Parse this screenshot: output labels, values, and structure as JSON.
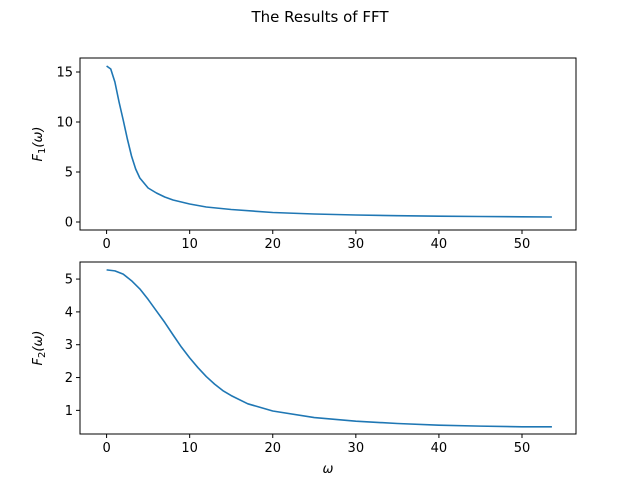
{
  "figure": {
    "title": "The Results of FFT",
    "line_color": "#1f77b4"
  },
  "chart_data": [
    {
      "type": "line",
      "title": "",
      "xlabel": "",
      "ylabel": "F1(ω)",
      "ylabel_main": "F",
      "ylabel_sub": "1",
      "ylabel_rest": "(ω)",
      "xlim": [
        -3.2,
        56.5
      ],
      "ylim": [
        -0.8,
        16.4
      ],
      "xticks": [
        0,
        10,
        20,
        30,
        40,
        50
      ],
      "yticks": [
        0,
        5,
        10,
        15
      ],
      "grid": false,
      "series": [
        {
          "x": [
            0,
            0.5,
            1,
            1.5,
            2,
            2.5,
            3,
            3.5,
            4,
            5,
            6,
            7,
            8,
            10,
            12,
            15,
            20,
            25,
            30,
            35,
            40,
            45,
            50,
            53.6
          ],
          "y": [
            15.6,
            15.3,
            14.0,
            12.0,
            10.2,
            8.3,
            6.6,
            5.3,
            4.4,
            3.4,
            2.9,
            2.5,
            2.2,
            1.8,
            1.5,
            1.25,
            0.95,
            0.8,
            0.7,
            0.63,
            0.58,
            0.55,
            0.52,
            0.5
          ]
        }
      ]
    },
    {
      "type": "line",
      "title": "",
      "xlabel": "ω",
      "ylabel": "F2(ω)",
      "ylabel_main": "F",
      "ylabel_sub": "2",
      "ylabel_rest": "(ω)",
      "xlim": [
        -3.2,
        56.5
      ],
      "ylim": [
        0.28,
        5.52
      ],
      "xticks": [
        0,
        10,
        20,
        30,
        40,
        50
      ],
      "yticks": [
        1,
        2,
        3,
        4,
        5
      ],
      "grid": false,
      "series": [
        {
          "x": [
            0,
            1,
            2,
            3,
            4,
            5,
            6,
            7,
            8,
            9,
            10,
            11,
            12,
            13,
            14,
            15,
            17,
            20,
            25,
            30,
            35,
            40,
            45,
            50,
            53.6
          ],
          "y": [
            5.28,
            5.25,
            5.15,
            4.95,
            4.7,
            4.38,
            4.03,
            3.68,
            3.3,
            2.93,
            2.6,
            2.3,
            2.03,
            1.8,
            1.6,
            1.45,
            1.2,
            0.98,
            0.78,
            0.67,
            0.6,
            0.55,
            0.52,
            0.5,
            0.5
          ]
        }
      ]
    }
  ]
}
